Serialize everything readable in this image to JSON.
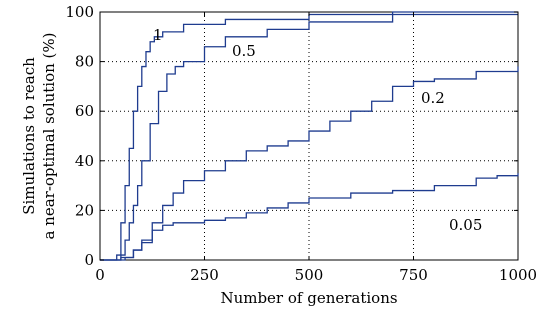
{
  "chart_data": {
    "type": "line",
    "title": "",
    "xlabel": "Number of generations",
    "ylabel_lines": [
      "Simulations to reach",
      "a near-optimal solution (%)"
    ],
    "xlim": [
      0,
      1000
    ],
    "ylim": [
      0,
      100
    ],
    "xticks": [
      0,
      250,
      500,
      750,
      1000
    ],
    "yticks": [
      0,
      20,
      40,
      60,
      80,
      100
    ],
    "grid": true,
    "series": [
      {
        "label": "1",
        "label_at": [
          1,
          85
        ],
        "x": [
          0,
          40,
          50,
          60,
          70,
          80,
          90,
          100,
          110,
          120,
          130,
          150,
          200,
          300,
          500,
          700,
          850,
          1000
        ],
        "y": [
          0,
          2,
          15,
          30,
          45,
          60,
          70,
          78,
          84,
          88,
          90,
          92,
          95,
          97,
          99,
          100,
          100,
          100
        ]
      },
      {
        "label": "0.5",
        "label_at": [
          0.5,
          81
        ],
        "x": [
          0,
          50,
          60,
          70,
          80,
          90,
          100,
          120,
          140,
          160,
          180,
          200,
          250,
          300,
          400,
          500,
          700,
          1000
        ],
        "y": [
          0,
          2,
          8,
          15,
          22,
          30,
          40,
          55,
          68,
          75,
          78,
          80,
          86,
          90,
          93,
          96,
          99,
          99
        ]
      },
      {
        "label": "0.2",
        "label_at": [
          0.2,
          64
        ],
        "x": [
          0,
          50,
          80,
          100,
          125,
          150,
          175,
          200,
          250,
          300,
          350,
          400,
          450,
          500,
          550,
          600,
          650,
          700,
          750,
          800,
          900,
          1000
        ],
        "y": [
          0,
          1,
          4,
          8,
          15,
          22,
          27,
          32,
          36,
          40,
          44,
          46,
          48,
          52,
          56,
          60,
          64,
          70,
          72,
          73,
          76,
          78
        ]
      },
      {
        "label": "0.05",
        "label_at": [
          0.05,
          28
        ],
        "x": [
          0,
          60,
          80,
          100,
          125,
          150,
          175,
          250,
          300,
          350,
          400,
          450,
          500,
          600,
          700,
          800,
          900,
          950,
          1000
        ],
        "y": [
          0,
          1,
          4,
          7,
          12,
          14,
          15,
          16,
          17,
          19,
          21,
          23,
          25,
          27,
          28,
          30,
          33,
          34,
          35
        ]
      }
    ]
  }
}
